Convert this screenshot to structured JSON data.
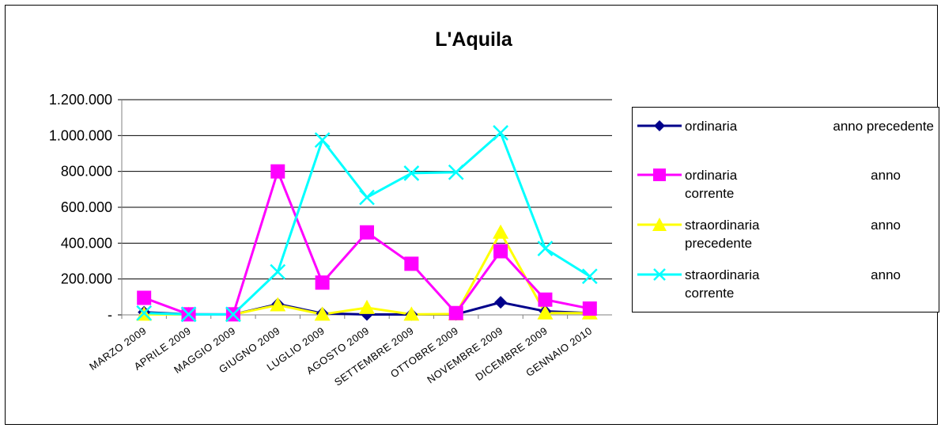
{
  "chart_data": {
    "type": "line",
    "title": "L'Aquila",
    "xlabel": "",
    "ylabel": "",
    "ylim": [
      0,
      1200000
    ],
    "y_ticks": [
      "-",
      "200.000",
      "400.000",
      "600.000",
      "800.000",
      "1.000.000",
      "1.200.000"
    ],
    "grid": true,
    "legend_position": "right",
    "categories": [
      "MARZO 2009",
      "APRILE 2009",
      "MAGGIO 2009",
      "GIUGNO 2009",
      "LUGLIO 2009",
      "AGOSTO 2009",
      "SETTEMBRE 2009",
      "OTTOBRE 2009",
      "NOVEMBRE 2009",
      "DICEMBRE 2009",
      "GENNAIO 2010"
    ],
    "series": [
      {
        "name": "ordinaria",
        "tag": "anno precedente",
        "legend_line1": "ordinaria",
        "legend_line2": "",
        "color": "#00008B",
        "marker": "diamond",
        "values": [
          15000,
          3000,
          2000,
          60000,
          8000,
          2000,
          2000,
          3000,
          70000,
          20000,
          10000
        ]
      },
      {
        "name": "ordinaria corrente",
        "tag": "anno",
        "legend_line1": "ordinaria",
        "legend_line2": "corrente",
        "color": "#FF00FF",
        "marker": "square",
        "values": [
          95000,
          3000,
          3000,
          800000,
          180000,
          460000,
          285000,
          10000,
          355000,
          85000,
          35000
        ]
      },
      {
        "name": "straordinaria precedente",
        "tag": "anno",
        "legend_line1": "straordinaria",
        "legend_line2": "precedente",
        "color": "#FFFF00",
        "marker": "triangle",
        "values": [
          3000,
          2000,
          2000,
          55000,
          3000,
          40000,
          3000,
          5000,
          460000,
          10000,
          10000
        ]
      },
      {
        "name": "straordinaria corrente",
        "tag": "anno",
        "legend_line1": "straordinaria",
        "legend_line2": "corrente",
        "color": "#00FFFF",
        "marker": "x",
        "values": [
          10000,
          3000,
          3000,
          240000,
          975000,
          655000,
          790000,
          795000,
          1015000,
          370000,
          215000
        ]
      }
    ]
  }
}
